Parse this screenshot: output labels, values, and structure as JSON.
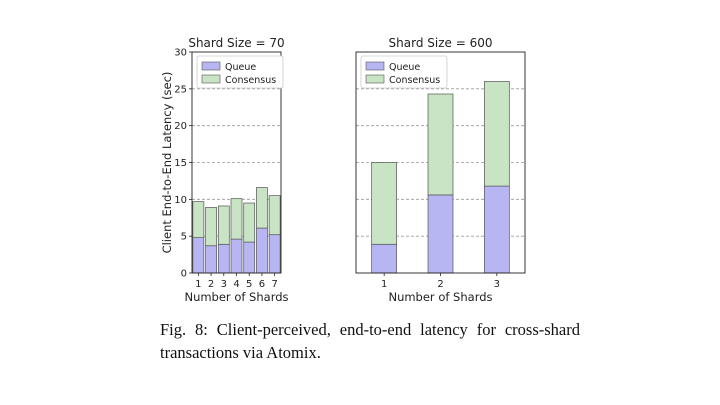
{
  "caption": "Fig. 8: Client-perceived, end-to-end latency for cross-shard transactions via Atomix.",
  "colors": {
    "queue": "#b7b6f2",
    "consensus": "#c9e3c5",
    "edge": "#555555",
    "grid": "#9a9a9a"
  },
  "chart_data": [
    {
      "type": "bar",
      "stacked": true,
      "title": "Shard Size = 70",
      "xlabel": "Number of Shards",
      "ylabel": "Client End-to-End Latency (sec)",
      "ylim": [
        0,
        30
      ],
      "yticks": [
        0,
        5,
        10,
        15,
        20,
        25,
        30
      ],
      "grid": true,
      "legend": "top-left",
      "categories": [
        "1",
        "2",
        "3",
        "4",
        "5",
        "6",
        "7"
      ],
      "series": [
        {
          "name": "Queue",
          "values": [
            4.8,
            3.7,
            3.9,
            4.6,
            4.2,
            6.1,
            5.2
          ]
        },
        {
          "name": "Consensus",
          "values": [
            4.9,
            5.2,
            5.2,
            5.5,
            5.3,
            5.5,
            5.3
          ]
        }
      ]
    },
    {
      "type": "bar",
      "stacked": true,
      "title": "Shard Size = 600",
      "xlabel": "Number of Shards",
      "ylabel": "",
      "ylim": [
        0,
        30
      ],
      "grid": true,
      "legend": "top-left",
      "categories": [
        "1",
        "2",
        "3"
      ],
      "series": [
        {
          "name": "Queue",
          "values": [
            3.9,
            10.6,
            11.8
          ]
        },
        {
          "name": "Consensus",
          "values": [
            11.1,
            13.7,
            14.2
          ]
        }
      ]
    }
  ]
}
